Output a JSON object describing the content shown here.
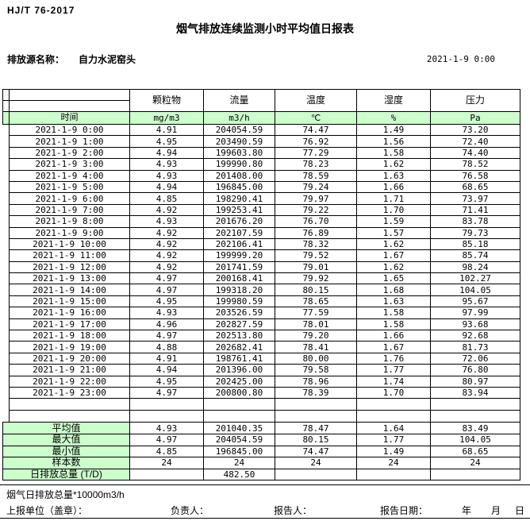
{
  "header": {
    "standard_no": "HJ/T 76-2017",
    "title": "烟气排放连续监测小时平均值日报表",
    "source_label": "排放源名称：",
    "source_name": "自力水泥窑头",
    "datetime": "2021-1-9 0:00"
  },
  "table": {
    "time_header": "时间",
    "columns": [
      {
        "label": "颗粒物",
        "unit": "mg/m3"
      },
      {
        "label": "流量",
        "unit": "m3/h"
      },
      {
        "label": "温度",
        "unit": "℃"
      },
      {
        "label": "湿度",
        "unit": "%"
      },
      {
        "label": "压力",
        "unit": "Pa"
      }
    ],
    "rows": [
      {
        "time": "2021-1-9 0:00",
        "values": [
          "4.91",
          "204054.59",
          "74.47",
          "1.49",
          "73.20"
        ]
      },
      {
        "time": "2021-1-9 1:00",
        "values": [
          "4.95",
          "203490.59",
          "76.92",
          "1.56",
          "72.40"
        ]
      },
      {
        "time": "2021-1-9 2:00",
        "values": [
          "4.94",
          "199603.80",
          "77.29",
          "1.58",
          "74.40"
        ]
      },
      {
        "time": "2021-1-9 3:00",
        "values": [
          "4.93",
          "199990.80",
          "78.23",
          "1.62",
          "78.52"
        ]
      },
      {
        "time": "2021-1-9 4:00",
        "values": [
          "4.93",
          "201408.00",
          "78.59",
          "1.63",
          "76.58"
        ]
      },
      {
        "time": "2021-1-9 5:00",
        "values": [
          "4.94",
          "196845.00",
          "79.24",
          "1.66",
          "68.65"
        ]
      },
      {
        "time": "2021-1-9 6:00",
        "values": [
          "4.85",
          "198290.41",
          "79.97",
          "1.71",
          "73.97"
        ]
      },
      {
        "time": "2021-1-9 7:00",
        "values": [
          "4.92",
          "199253.41",
          "79.22",
          "1.70",
          "71.41"
        ]
      },
      {
        "time": "2021-1-9 8:00",
        "values": [
          "4.93",
          "201676.20",
          "76.70",
          "1.59",
          "83.78"
        ]
      },
      {
        "time": "2021-1-9 9:00",
        "values": [
          "4.92",
          "202107.59",
          "76.89",
          "1.57",
          "79.73"
        ]
      },
      {
        "time": "2021-1-9 10:00",
        "values": [
          "4.92",
          "202106.41",
          "78.32",
          "1.62",
          "85.18"
        ]
      },
      {
        "time": "2021-1-9 11:00",
        "values": [
          "4.92",
          "199999.20",
          "79.52",
          "1.67",
          "85.74"
        ]
      },
      {
        "time": "2021-1-9 12:00",
        "values": [
          "4.92",
          "201741.59",
          "79.01",
          "1.62",
          "98.24"
        ]
      },
      {
        "time": "2021-1-9 13:00",
        "values": [
          "4.97",
          "200168.41",
          "79.92",
          "1.65",
          "102.27"
        ]
      },
      {
        "time": "2021-1-9 14:00",
        "values": [
          "4.97",
          "199318.20",
          "80.15",
          "1.68",
          "104.05"
        ]
      },
      {
        "time": "2021-1-9 15:00",
        "values": [
          "4.95",
          "199980.59",
          "78.65",
          "1.63",
          "95.67"
        ]
      },
      {
        "time": "2021-1-9 16:00",
        "values": [
          "4.93",
          "203526.59",
          "77.59",
          "1.58",
          "97.99"
        ]
      },
      {
        "time": "2021-1-9 17:00",
        "values": [
          "4.96",
          "202827.59",
          "78.01",
          "1.58",
          "93.68"
        ]
      },
      {
        "time": "2021-1-9 18:00",
        "values": [
          "4.97",
          "202513.80",
          "79.20",
          "1.66",
          "92.68"
        ]
      },
      {
        "time": "2021-1-9 19:00",
        "values": [
          "4.88",
          "202682.41",
          "78.41",
          "1.67",
          "81.73"
        ]
      },
      {
        "time": "2021-1-9 20:00",
        "values": [
          "4.91",
          "198761.41",
          "80.00",
          "1.76",
          "72.06"
        ]
      },
      {
        "time": "2021-1-9 21:00",
        "values": [
          "4.94",
          "201396.00",
          "79.58",
          "1.77",
          "76.80"
        ]
      },
      {
        "time": "2021-1-9 22:00",
        "values": [
          "4.95",
          "202425.00",
          "78.96",
          "1.74",
          "80.97"
        ]
      },
      {
        "time": "2021-1-9 23:00",
        "values": [
          "4.97",
          "200800.80",
          "78.39",
          "1.70",
          "83.94"
        ]
      }
    ],
    "blank_row_count": 2,
    "summary": [
      {
        "label": "平均值",
        "values": [
          "4.93",
          "201040.35",
          "78.47",
          "1.64",
          "83.49"
        ]
      },
      {
        "label": "最大值",
        "values": [
          "4.97",
          "204054.59",
          "80.15",
          "1.77",
          "104.05"
        ]
      },
      {
        "label": "最小值",
        "values": [
          "4.85",
          "196845.00",
          "74.47",
          "1.49",
          "68.65"
        ]
      },
      {
        "label": "样本数",
        "values": [
          "24",
          "24",
          "24",
          "24",
          "24"
        ]
      },
      {
        "label": "日排放总量 (T/D)",
        "values": [
          "",
          "482.50",
          "",
          "",
          ""
        ]
      }
    ]
  },
  "footer": {
    "note": "烟气日排放总量*10000m3/h",
    "report_unit_label": "上报单位（盖章）：",
    "responsible_label": "负责人：",
    "reporter_label": "报告人：",
    "report_date_label": "报告日期：",
    "year_label": "年",
    "month_label": "月",
    "day_label": "日"
  },
  "colors": {
    "header_green": "#ccffcc",
    "border": "#000000",
    "background": "#ffffff"
  }
}
